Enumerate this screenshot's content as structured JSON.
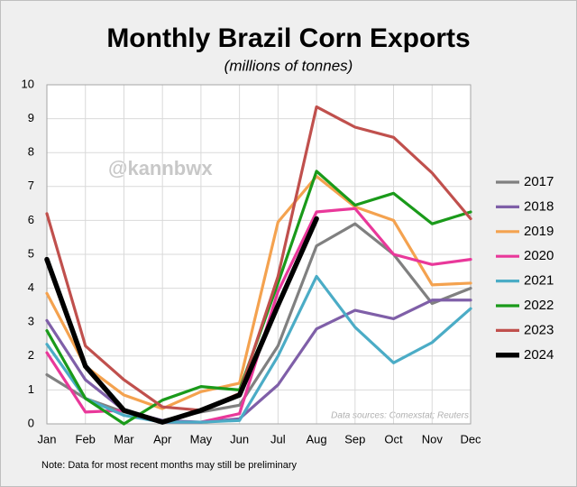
{
  "chart_data": {
    "type": "line",
    "title": "Monthly Brazil Corn Exports",
    "subtitle": "(millions of tonnes)",
    "watermark": "@kannbwx",
    "source": "Data sources: Comexstat; Reuters",
    "note": "Note: Data for most recent months may still be preliminary",
    "categories": [
      "Jan",
      "Feb",
      "Mar",
      "Apr",
      "May",
      "Jun",
      "Jul",
      "Aug",
      "Sep",
      "Oct",
      "Nov",
      "Dec"
    ],
    "ylim": [
      0,
      10
    ],
    "yticks": [
      0,
      1,
      2,
      3,
      4,
      5,
      6,
      7,
      8,
      9,
      10
    ],
    "grid": true,
    "legend": "right",
    "series": [
      {
        "name": "2017",
        "color": "#808080",
        "values": [
          1.45,
          0.75,
          0.35,
          0.1,
          0.35,
          0.55,
          2.3,
          5.25,
          5.9,
          5.0,
          3.55,
          4.0
        ]
      },
      {
        "name": "2018",
        "color": "#7f5fa8",
        "values": [
          3.05,
          1.3,
          0.4,
          0.1,
          0.05,
          0.15,
          1.15,
          2.8,
          3.35,
          3.1,
          3.65,
          3.65
        ]
      },
      {
        "name": "2019",
        "color": "#f4a24f",
        "values": [
          3.85,
          1.7,
          0.85,
          0.45,
          0.95,
          1.2,
          5.95,
          7.3,
          6.4,
          6.0,
          4.1,
          4.15
        ]
      },
      {
        "name": "2020",
        "color": "#e9389a",
        "values": [
          2.1,
          0.35,
          0.4,
          0.05,
          0.05,
          0.3,
          3.9,
          6.25,
          6.35,
          5.0,
          4.7,
          4.85
        ]
      },
      {
        "name": "2021",
        "color": "#4bacc6",
        "values": [
          2.35,
          0.75,
          0.25,
          0.05,
          0.05,
          0.1,
          2.0,
          4.35,
          2.85,
          1.8,
          2.4,
          3.4
        ]
      },
      {
        "name": "2022",
        "color": "#1a9a1a",
        "values": [
          2.75,
          0.75,
          0.0,
          0.7,
          1.1,
          1.0,
          4.15,
          7.45,
          6.45,
          6.8,
          5.9,
          6.25
        ]
      },
      {
        "name": "2023",
        "color": "#c0504d",
        "values": [
          6.2,
          2.3,
          1.3,
          0.5,
          0.4,
          0.9,
          4.35,
          9.35,
          8.75,
          8.45,
          7.4,
          6.05
        ]
      },
      {
        "name": "2024",
        "color": "#000000",
        "values": [
          4.85,
          1.7,
          0.4,
          0.05,
          0.4,
          0.85,
          3.5,
          6.05,
          null,
          null,
          null,
          null
        ]
      }
    ]
  }
}
